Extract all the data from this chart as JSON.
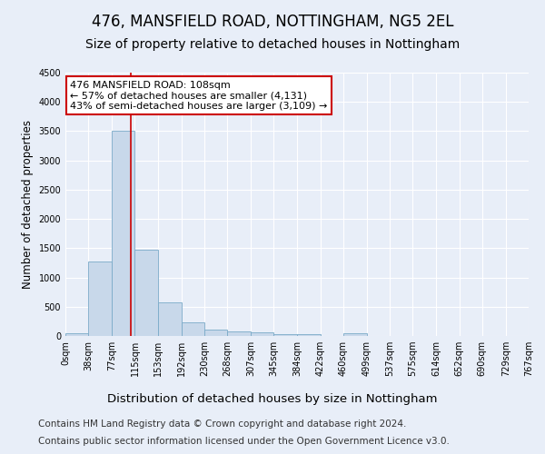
{
  "title1": "476, MANSFIELD ROAD, NOTTINGHAM, NG5 2EL",
  "title2": "Size of property relative to detached houses in Nottingham",
  "xlabel": "Distribution of detached houses by size in Nottingham",
  "ylabel": "Number of detached properties",
  "footer1": "Contains HM Land Registry data © Crown copyright and database right 2024.",
  "footer2": "Contains public sector information licensed under the Open Government Licence v3.0.",
  "bin_edges": [
    0,
    38,
    77,
    115,
    153,
    192,
    230,
    268,
    307,
    345,
    384,
    422,
    460,
    499,
    537,
    575,
    614,
    652,
    690,
    729,
    767
  ],
  "bar_heights": [
    50,
    1280,
    3500,
    1480,
    580,
    240,
    115,
    85,
    55,
    30,
    30,
    0,
    50,
    0,
    0,
    0,
    0,
    0,
    0,
    0
  ],
  "bar_color": "#c8d8ea",
  "bar_edge_color": "#7aaac8",
  "property_size": 108,
  "vline_color": "#cc0000",
  "ann_line1": "476 MANSFIELD ROAD: 108sqm",
  "ann_line2": "← 57% of detached houses are smaller (4,131)",
  "ann_line3": "43% of semi-detached houses are larger (3,109) →",
  "annotation_box_color": "#cc0000",
  "ylim": [
    0,
    4500
  ],
  "yticks": [
    0,
    500,
    1000,
    1500,
    2000,
    2500,
    3000,
    3500,
    4000,
    4500
  ],
  "bg_color": "#e8eef8",
  "plot_bg_color": "#e8eef8",
  "grid_color": "#ffffff",
  "title1_fontsize": 12,
  "title2_fontsize": 10,
  "xlabel_fontsize": 9.5,
  "ylabel_fontsize": 8.5,
  "footer_fontsize": 7.5,
  "tick_fontsize": 7,
  "ann_fontsize": 8
}
